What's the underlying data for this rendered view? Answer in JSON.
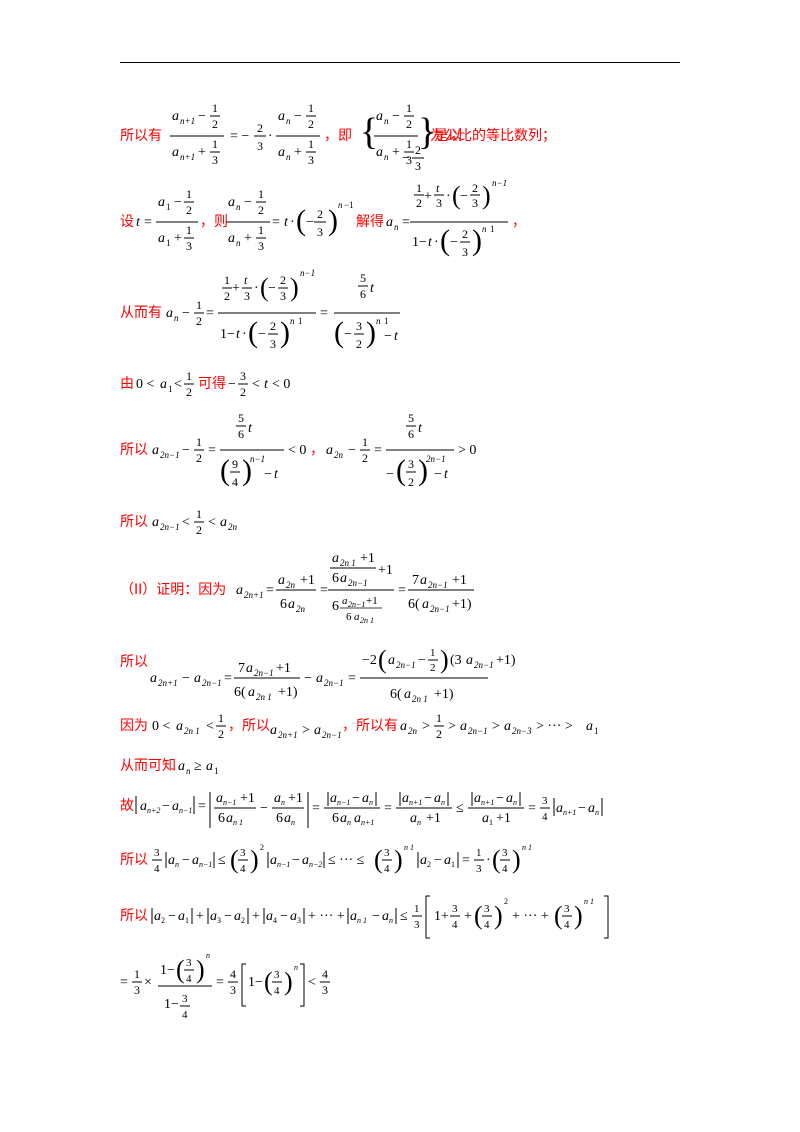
{
  "lines": [
    {
      "zh": "所以有",
      "math": "(a_{n+1} − 1/2)/(a_{n+1} + 1/3) = −2/3 · (a_n − 1/2)/(a_n + 1/3)",
      "zh2": "，即",
      "math2": "{(a_n − 1/2)/(a_n + 1/3)}",
      "zh3": "是以",
      "math3": "−2/3",
      "zh4": "为公比的等比数列；"
    },
    {
      "zh": "设",
      "math": "t = (a_1 − 1/2)/(a_1 + 1/3)",
      "zh2": "，则",
      "math2": "(a_n − 1/2)/(a_n + 1/3) = t·(−2/3)^{n−1}",
      "zh3": "解得",
      "math3": "a_n = (1/2 + t/3·(−2/3)^{n−1})/(1 − t·(−2/3)^{n−1})",
      "zh4": "，"
    },
    {
      "zh": "从而有",
      "math": "a_n − 1/2 = (1/2 + t/3·(−2/3)^{n−1})/(1 − t·(−2/3)^{n−1}) = (5/6 t)/((−3/2)^{n−1} − t)"
    },
    {
      "zh": "由",
      "math": "0 < a_1 < 1/2",
      "zh2": "可得",
      "math2": "−3/2 < t < 0"
    },
    {
      "zh": "所以",
      "math": "a_{2n−1} − 1/2 = (5/6 t)/((9/4)^{n−1} − t) < 0",
      "zh2": "，",
      "math2": "a_{2n} − 1/2 = (5/6 t)/(−(3/2)^{2n−1} − t) > 0"
    },
    {
      "zh": "所以",
      "math": "a_{2n−1} < 1/2 < a_{2n}"
    },
    {
      "zh": "（II）证明：因为",
      "math": "a_{2n+1} = (a_{2n} + 1)/(6a_{2n}) = ((a_{2n−1}+1)/(6a_{2n−1}) + 1)/(6·(a_{2n−1}+1)/(6a_{2n−1})) = (7a_{2n−1} + 1)/(6(a_{2n−1} + 1))"
    },
    {
      "zh": "所以",
      "math": "a_{2n+1} − a_{2n−1} = (7a_{2n−1} + 1)/(6(a_{2n−1} + 1)) − a_{2n−1} = −2(a_{2n−1} − 1/2)(3a_{2n−1} + 1)/(6(a_{2n−1} + 1))"
    },
    {
      "zh": "因为",
      "math": "0 < a_{2n−1} < 1/2",
      "zh2": "，所以",
      "math2": "a_{2n+1} > a_{2n−1}",
      "zh3": "，所以有",
      "math3": "a_{2n} > 1/2 > a_{2n−1} > a_{2n−3} > ··· > a_1"
    },
    {
      "zh": "从而可知",
      "math": "a_n ≥ a_1"
    },
    {
      "zh": "故",
      "math": "|a_{n+2} − a_{n+1}| = |(a_{n+1}+1)/(6a_{n+1}) − (a_n+1)/(6a_n)| = |a_{n+1} − a_n|/(6a_n a_{n+1}) = |a_{n+1} − a_n|/(a_n + 1) ≤ |a_{n+1} − a_n|/(a_1 + 1) = 3/4 |a_{n+1} − a_n|"
    },
    {
      "zh": "所以",
      "math": "3/4 |a_n − a_{n−1}| ≤ (3/4)^2 |a_{n−1} − a_{n−2}| ≤ ··· ≤ (3/4)^{n−1} |a_2 − a_1| = 1/3 · (3/4)^{n−1}"
    },
    {
      "zh": "所以",
      "math": "|a_2 − a_1| + |a_3 − a_2| + |a_4 − a_3| + ··· + |a_{n+1} − a_n| ≤ 1/3 [1 + 3/4 + (3/4)^2 + ··· + (3/4)^{n−1}]"
    },
    {
      "zh": "",
      "math": "= 1/3 × (1 − (3/4)^n)/(1 − 3/4) = 4/3 [1 − (3/4)^n] < 4/3"
    }
  ]
}
